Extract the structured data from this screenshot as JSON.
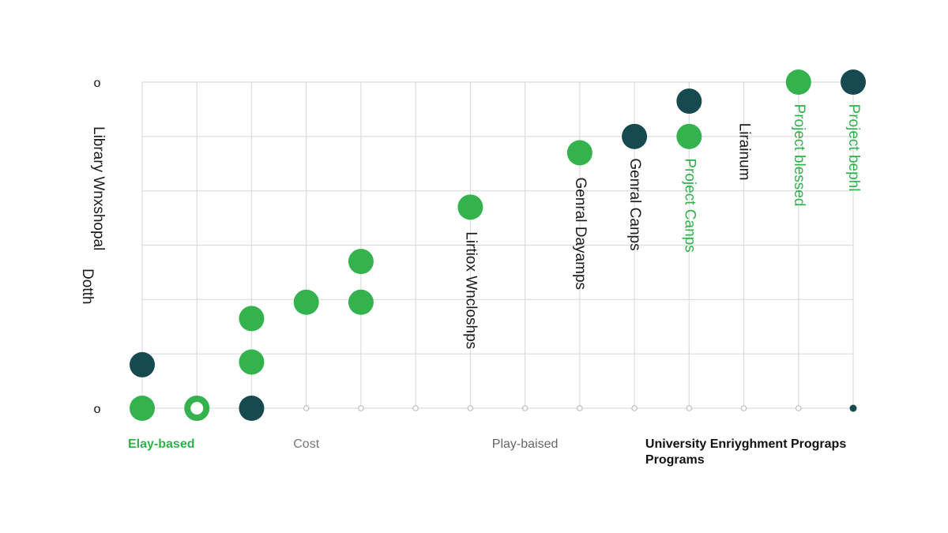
{
  "chart_data": {
    "type": "scatter",
    "title": "",
    "ylabel": [
      "Library Wnxshopal",
      "Dotth"
    ],
    "y_tick_labels": [
      "o",
      "o"
    ],
    "xlim": [
      0,
      13
    ],
    "ylim": [
      0,
      6
    ],
    "x_tick_labels": [
      {
        "x": 0,
        "lines": [
          "Elay-based"
        ],
        "color": "#2fb24c",
        "weight": "bold"
      },
      {
        "x": 3,
        "lines": [
          "Cost"
        ],
        "color": "#777777",
        "weight": "normal"
      },
      {
        "x": 7,
        "lines": [
          "Play-baised"
        ],
        "color": "#666666",
        "weight": "normal"
      },
      {
        "x": 9.2,
        "lines": [
          "University Enriyghment Prograps",
          "Programs"
        ],
        "color": "#111111",
        "weight": "bold"
      }
    ],
    "colors": {
      "green": "#33b24e",
      "dark": "#174a4e",
      "grid": "#dcdcdc"
    },
    "series": [
      {
        "color_key": "green",
        "points": [
          {
            "x": 0,
            "y": 0
          },
          {
            "x": 2,
            "y": 0.85
          },
          {
            "x": 2,
            "y": 1.65
          },
          {
            "x": 3,
            "y": 1.95
          },
          {
            "x": 4,
            "y": 1.95
          },
          {
            "x": 4,
            "y": 2.7
          },
          {
            "x": 6,
            "y": 3.7
          },
          {
            "x": 8,
            "y": 4.7
          },
          {
            "x": 10,
            "y": 5.0
          },
          {
            "x": 12,
            "y": 6.0
          }
        ]
      },
      {
        "color_key": "dark",
        "points": [
          {
            "x": 0,
            "y": 0.8
          },
          {
            "x": 2,
            "y": 0
          },
          {
            "x": 9,
            "y": 5.0
          },
          {
            "x": 10,
            "y": 5.65
          },
          {
            "x": 13,
            "y": 6.0
          }
        ]
      },
      {
        "color_key": "green",
        "hollow": true,
        "points": [
          {
            "x": 1,
            "y": 0
          }
        ]
      }
    ],
    "baseline_dots": [
      {
        "x": 3
      },
      {
        "x": 4
      },
      {
        "x": 5
      },
      {
        "x": 6
      },
      {
        "x": 7
      },
      {
        "x": 8
      },
      {
        "x": 9
      },
      {
        "x": 10
      },
      {
        "x": 11
      },
      {
        "x": 12
      },
      {
        "x": 13,
        "filled": true
      }
    ],
    "annotations": [
      {
        "text": "Lirtiox Wncloshps",
        "x": 6,
        "y": 3.25,
        "color_key": "text_dark"
      },
      {
        "text": "Genral Dayamps",
        "x": 8,
        "y": 4.25,
        "color_key": "text_dark"
      },
      {
        "text": "Genral Canps",
        "x": 9,
        "y": 4.6,
        "color_key": "text_dark"
      },
      {
        "text": "Project Canps",
        "x": 10,
        "y": 4.6,
        "color_key": "green"
      },
      {
        "text": "Lirainum",
        "x": 11,
        "y": 5.25,
        "color_key": "text_dark"
      },
      {
        "text": "Project blessed",
        "x": 12,
        "y": 5.6,
        "color_key": "green"
      },
      {
        "text": "Project bephl",
        "x": 13,
        "y": 5.6,
        "color_key": "green"
      }
    ],
    "text_colors": {
      "text_dark": "#1a1a1a",
      "green": "#2fb24c"
    }
  }
}
